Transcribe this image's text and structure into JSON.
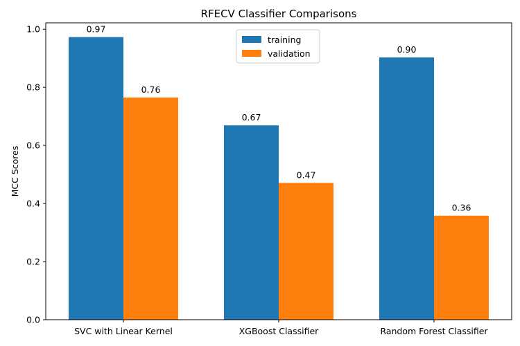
{
  "chart_data": {
    "type": "bar",
    "title": "RFECV Classifier Comparisons",
    "xlabel": "",
    "ylabel": "MCC Scores",
    "categories": [
      "SVC with Linear Kernel",
      "XGBoost Classifier",
      "Random Forest Classifier"
    ],
    "series": [
      {
        "name": "training",
        "values": [
          0.973,
          0.669,
          0.903
        ],
        "labels": [
          "0.97",
          "0.67",
          "0.90"
        ],
        "color": "#1f77b4"
      },
      {
        "name": "validation",
        "values": [
          0.765,
          0.471,
          0.358
        ],
        "labels": [
          "0.76",
          "0.47",
          "0.36"
        ],
        "color": "#ff7f0e"
      }
    ],
    "ylim": [
      0,
      1.022
    ],
    "yticks": [
      0.0,
      0.2,
      0.4,
      0.6,
      0.8,
      1.0
    ],
    "ytick_labels": [
      "0.0",
      "0.2",
      "0.4",
      "0.6",
      "0.8",
      "1.0"
    ],
    "grid": false,
    "legend_position": "top-center"
  }
}
